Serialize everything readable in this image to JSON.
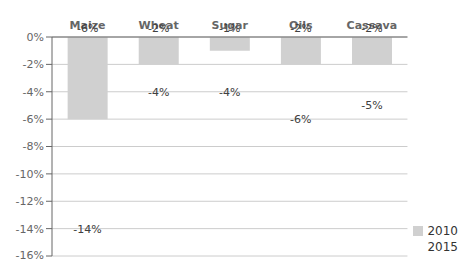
{
  "chart_data": {
    "type": "bar",
    "categories": [
      "Maize",
      "Wheat",
      "Sugar",
      "Oils",
      "Cassava"
    ],
    "series": [
      {
        "name": "2010",
        "color": "#d0d0d0",
        "values": [
          -6,
          -2,
          -1,
          -2,
          -2
        ],
        "value_labels": [
          "-6%",
          "-2%",
          "-1%",
          "-2%",
          "-2%"
        ]
      },
      {
        "name": "2015",
        "type": "scatter",
        "marker": "none",
        "values": [
          -14,
          -4,
          -4,
          -6,
          -5
        ],
        "value_labels": [
          "-14%",
          "-4%",
          "-4%",
          "-6%",
          "-5%"
        ]
      }
    ],
    "ylim": [
      -16,
      0
    ],
    "yticks": [
      {
        "value": 0,
        "label": "0%"
      },
      {
        "value": -2,
        "label": "-2%"
      },
      {
        "value": -4,
        "label": "-4%"
      },
      {
        "value": -6,
        "label": "-6%"
      },
      {
        "value": -8,
        "label": "-8%"
      },
      {
        "value": -10,
        "label": "-10%"
      },
      {
        "value": -12,
        "label": "-12%"
      },
      {
        "value": -14,
        "label": "-14%"
      },
      {
        "value": -16,
        "label": "-16%"
      }
    ],
    "grid": true,
    "legend": "lower right",
    "data_labels": true
  }
}
